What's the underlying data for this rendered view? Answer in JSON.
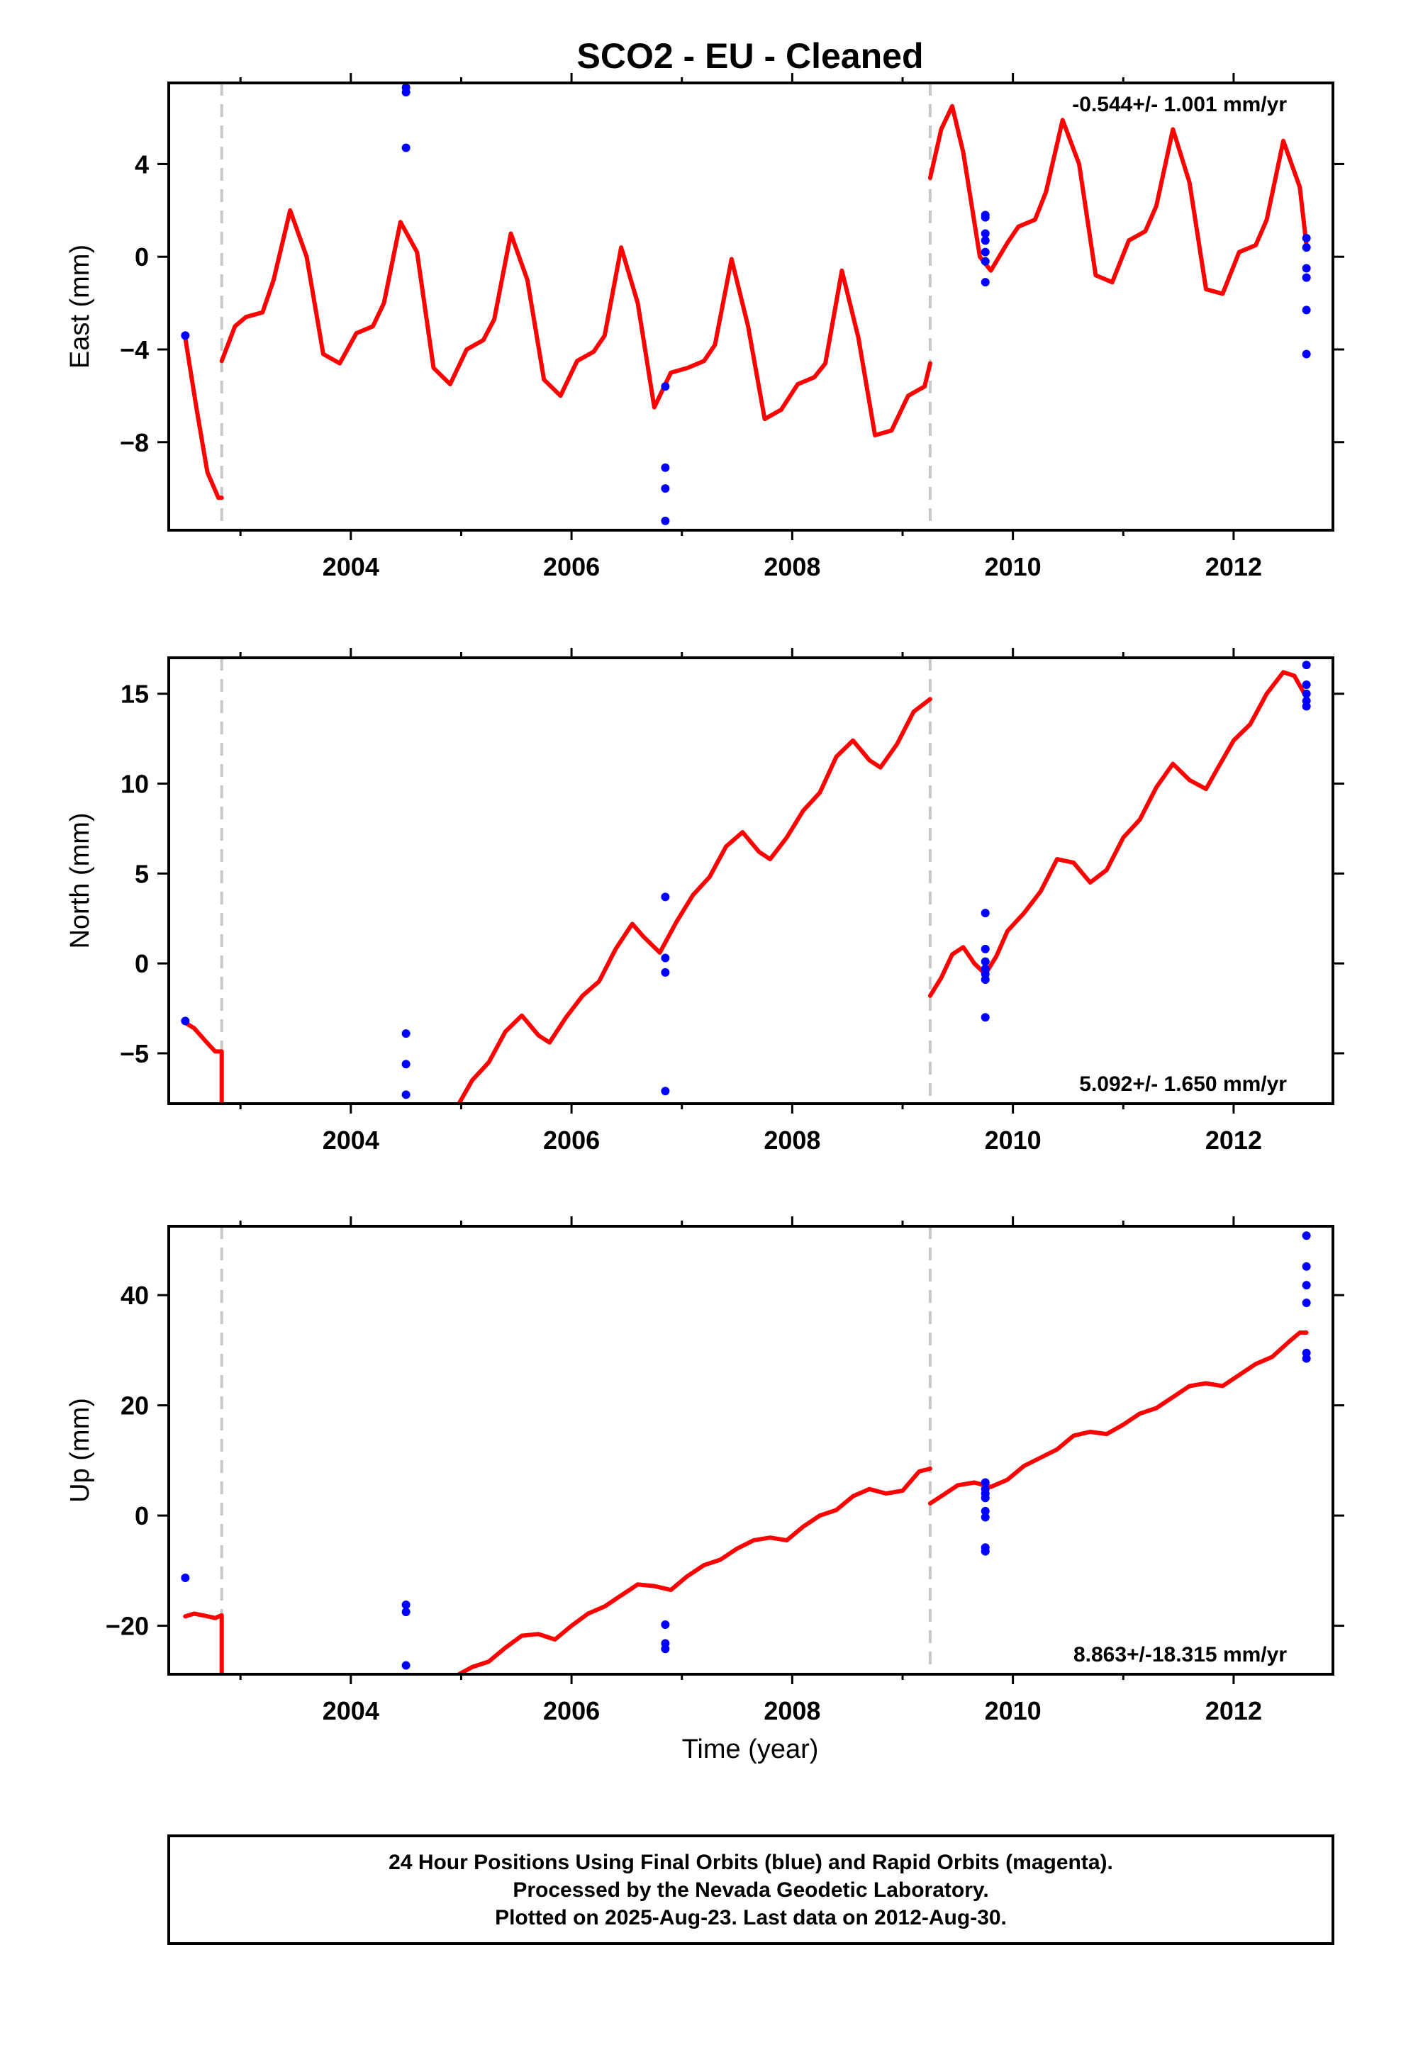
{
  "chart_data": [
    {
      "type": "line",
      "title": "SCO2  - EU - Cleaned",
      "ylabel": "East (mm)",
      "xlabel": "",
      "rate_label": "-0.544+/- 1.001 mm/yr",
      "xlim": [
        2002.35,
        2012.9
      ],
      "ylim": [
        -11.8,
        7.5
      ],
      "yticks": [
        -8,
        -4,
        0,
        4
      ],
      "ytick_labels": [
        "−8",
        "−4",
        "0",
        "4"
      ],
      "xticks": [
        2004,
        2006,
        2008,
        2010,
        2012
      ],
      "xtick_labels": [
        "2004",
        "2006",
        "2008",
        "2010",
        "2012"
      ],
      "breaks": [
        2002.83,
        2009.25
      ],
      "series": [
        {
          "kind": "line",
          "color": "#ff0000",
          "segments": [
            {
              "x": [
                2002.5,
                2002.6,
                2002.7,
                2002.8,
                2002.83
              ],
              "y": [
                -3.5,
                -6.5,
                -9.3,
                -10.4,
                -10.4
              ]
            },
            {
              "x": [
                2002.83,
                2002.95,
                2003.05,
                2003.2,
                2003.3,
                2003.45,
                2003.6,
                2003.75,
                2003.9,
                2004.05,
                2004.2,
                2004.3,
                2004.45,
                2004.6,
                2004.75,
                2004.9,
                2005.05,
                2005.2,
                2005.3,
                2005.45,
                2005.6,
                2005.75,
                2005.9,
                2006.05,
                2006.2,
                2006.3,
                2006.45,
                2006.6,
                2006.75,
                2006.9,
                2007.05,
                2007.2,
                2007.3,
                2007.45,
                2007.6,
                2007.75,
                2007.9,
                2008.05,
                2008.2,
                2008.3,
                2008.45,
                2008.6,
                2008.75,
                2008.9,
                2009.05,
                2009.2,
                2009.25
              ],
              "y": [
                -4.5,
                -3.0,
                -2.6,
                -2.4,
                -1.0,
                2.0,
                0.0,
                -4.2,
                -4.6,
                -3.3,
                -3.0,
                -2.0,
                1.5,
                0.2,
                -4.8,
                -5.5,
                -4.0,
                -3.6,
                -2.7,
                1.0,
                -1.0,
                -5.3,
                -6.0,
                -4.5,
                -4.1,
                -3.4,
                0.4,
                -2.0,
                -6.5,
                -5.0,
                -4.8,
                -4.5,
                -3.8,
                -0.1,
                -3.0,
                -7.0,
                -6.6,
                -5.5,
                -5.2,
                -4.6,
                -0.6,
                -3.5,
                -7.7,
                -7.5,
                -6.0,
                -5.6,
                -4.6
              ]
            },
            {
              "x": [
                2009.25,
                2009.35,
                2009.45,
                2009.55,
                2009.7,
                2009.8,
                2009.95,
                2010.05,
                2010.2,
                2010.3,
                2010.45,
                2010.6,
                2010.75,
                2010.9,
                2011.05,
                2011.2,
                2011.3,
                2011.45,
                2011.6,
                2011.75,
                2011.9,
                2012.05,
                2012.2,
                2012.3,
                2012.45,
                2012.6,
                2012.66
              ],
              "y": [
                3.4,
                5.5,
                6.5,
                4.5,
                0.0,
                -0.6,
                0.6,
                1.3,
                1.6,
                2.8,
                5.9,
                4.0,
                -0.8,
                -1.1,
                0.7,
                1.1,
                2.2,
                5.5,
                3.2,
                -1.4,
                -1.6,
                0.2,
                0.5,
                1.6,
                5.0,
                3.0,
                0.5
              ]
            }
          ]
        },
        {
          "kind": "scatter",
          "color": "#0000ff",
          "x": [
            2002.5,
            2004.5,
            2004.5,
            2004.5,
            2006.85,
            2006.85,
            2006.85,
            2006.85,
            2009.75,
            2009.75,
            2009.75,
            2009.75,
            2009.75,
            2009.75,
            2009.75,
            2012.66,
            2012.66,
            2012.66,
            2012.66,
            2012.66,
            2012.66
          ],
          "y": [
            -3.4,
            7.3,
            7.1,
            4.7,
            -5.6,
            -9.1,
            -10.0,
            -11.4,
            1.8,
            1.7,
            1.0,
            0.7,
            0.2,
            -0.2,
            -1.1,
            0.8,
            0.4,
            -0.5,
            -0.9,
            -2.3,
            -4.2
          ]
        }
      ]
    },
    {
      "type": "line",
      "ylabel": "North (mm)",
      "xlabel": "",
      "rate_label": "5.092+/- 1.650 mm/yr",
      "xlim": [
        2002.35,
        2012.9
      ],
      "ylim": [
        -7.8,
        17.0
      ],
      "yticks": [
        -5,
        0,
        5,
        10,
        15
      ],
      "ytick_labels": [
        "−5",
        "0",
        "5",
        "10",
        "15"
      ],
      "xticks": [
        2004,
        2006,
        2008,
        2010,
        2012
      ],
      "xtick_labels": [
        "2004",
        "2006",
        "2008",
        "2010",
        "2012"
      ],
      "breaks": [
        2002.83,
        2009.25
      ],
      "series": [
        {
          "kind": "line",
          "color": "#ff0000",
          "segments": [
            {
              "x": [
                2002.5,
                2002.58,
                2002.68,
                2002.77,
                2002.83,
                2002.83
              ],
              "y": [
                -3.3,
                -3.6,
                -4.3,
                -4.9,
                -4.9,
                -7.8
              ]
            },
            {
              "x": [
                2004.98,
                2005.1,
                2005.25,
                2005.4,
                2005.55,
                2005.7,
                2005.8,
                2005.95,
                2006.1,
                2006.25,
                2006.4,
                2006.55,
                2006.65,
                2006.8,
                2006.95,
                2007.1,
                2007.25,
                2007.4,
                2007.55,
                2007.7,
                2007.8,
                2007.95,
                2008.1,
                2008.25,
                2008.4,
                2008.55,
                2008.7,
                2008.8,
                2008.95,
                2009.1,
                2009.25
              ],
              "y": [
                -7.8,
                -6.5,
                -5.5,
                -3.8,
                -2.9,
                -4.0,
                -4.4,
                -3.0,
                -1.8,
                -1.0,
                0.8,
                2.2,
                1.5,
                0.6,
                2.3,
                3.8,
                4.8,
                6.5,
                7.3,
                6.2,
                5.8,
                7.0,
                8.5,
                9.5,
                11.5,
                12.4,
                11.3,
                10.9,
                12.2,
                14.0,
                14.7
              ]
            },
            {
              "x": [
                2009.25,
                2009.35,
                2009.45,
                2009.55,
                2009.65,
                2009.75,
                2009.85,
                2009.95,
                2010.1,
                2010.25,
                2010.4,
                2010.55,
                2010.7,
                2010.85,
                2011.0,
                2011.15,
                2011.3,
                2011.45,
                2011.6,
                2011.75,
                2011.85,
                2012.0,
                2012.15,
                2012.3,
                2012.45,
                2012.55,
                2012.66
              ],
              "y": [
                -1.8,
                -0.8,
                0.5,
                0.9,
                0.0,
                -0.6,
                0.4,
                1.8,
                2.8,
                4.0,
                5.8,
                5.6,
                4.5,
                5.2,
                7.0,
                8.0,
                9.8,
                11.1,
                10.2,
                9.7,
                10.8,
                12.4,
                13.3,
                15.0,
                16.2,
                16.0,
                14.8
              ]
            }
          ]
        },
        {
          "kind": "scatter",
          "color": "#0000ff",
          "x": [
            2002.5,
            2004.5,
            2004.5,
            2004.5,
            2006.85,
            2006.85,
            2006.85,
            2006.85,
            2009.75,
            2009.75,
            2009.75,
            2009.75,
            2009.75,
            2009.75,
            2009.75,
            2012.66,
            2012.66,
            2012.66,
            2012.66,
            2012.66
          ],
          "y": [
            -3.2,
            -3.9,
            -5.6,
            -7.3,
            3.7,
            0.3,
            -0.5,
            -7.1,
            2.8,
            0.8,
            0.1,
            -0.3,
            -0.6,
            -0.9,
            -3.0,
            16.6,
            15.5,
            15.0,
            14.6,
            14.3
          ]
        }
      ]
    },
    {
      "type": "line",
      "ylabel": "Up (mm)",
      "xlabel": "Time (year)",
      "rate_label": "8.863+/-18.315 mm/yr",
      "xlim": [
        2002.35,
        2012.9
      ],
      "ylim": [
        -28.8,
        52.5
      ],
      "yticks": [
        -20,
        0,
        20,
        40
      ],
      "ytick_labels": [
        "−20",
        "0",
        "20",
        "40"
      ],
      "xticks": [
        2004,
        2006,
        2008,
        2010,
        2012
      ],
      "xtick_labels": [
        "2004",
        "2006",
        "2008",
        "2010",
        "2012"
      ],
      "breaks": [
        2002.83,
        2009.25
      ],
      "series": [
        {
          "kind": "line",
          "color": "#ff0000",
          "segments": [
            {
              "x": [
                2002.5,
                2002.58,
                2002.68,
                2002.77,
                2002.83,
                2002.83
              ],
              "y": [
                -18.3,
                -17.8,
                -18.2,
                -18.6,
                -18.1,
                -28.8
              ]
            },
            {
              "x": [
                2004.98,
                2005.1,
                2005.25,
                2005.4,
                2005.55,
                2005.7,
                2005.85,
                2006.0,
                2006.15,
                2006.3,
                2006.45,
                2006.6,
                2006.75,
                2006.9,
                2007.05,
                2007.2,
                2007.35,
                2007.5,
                2007.65,
                2007.8,
                2007.95,
                2008.1,
                2008.25,
                2008.4,
                2008.55,
                2008.7,
                2008.85,
                2009.0,
                2009.15,
                2009.25
              ],
              "y": [
                -28.8,
                -27.5,
                -26.5,
                -24.0,
                -21.8,
                -21.5,
                -22.5,
                -20.0,
                -17.8,
                -16.5,
                -14.5,
                -12.5,
                -12.8,
                -13.5,
                -11.0,
                -9.0,
                -8.0,
                -6.0,
                -4.5,
                -4.0,
                -4.5,
                -2.0,
                0.0,
                1.0,
                3.5,
                4.8,
                4.0,
                4.5,
                8.0,
                8.5
              ]
            },
            {
              "x": [
                2009.25,
                2009.35,
                2009.5,
                2009.65,
                2009.8,
                2009.95,
                2010.1,
                2010.25,
                2010.4,
                2010.55,
                2010.7,
                2010.85,
                2011.0,
                2011.15,
                2011.3,
                2011.45,
                2011.6,
                2011.75,
                2011.9,
                2012.05,
                2012.2,
                2012.35,
                2012.5,
                2012.6,
                2012.66
              ],
              "y": [
                2.2,
                3.5,
                5.5,
                6.0,
                5.2,
                6.5,
                9.0,
                10.5,
                12.0,
                14.5,
                15.2,
                14.8,
                16.5,
                18.5,
                19.5,
                21.5,
                23.5,
                24.0,
                23.5,
                25.5,
                27.5,
                28.8,
                31.5,
                33.2,
                33.2
              ]
            }
          ]
        },
        {
          "kind": "scatter",
          "color": "#0000ff",
          "x": [
            2002.5,
            2004.5,
            2004.5,
            2004.5,
            2006.85,
            2006.85,
            2006.85,
            2009.75,
            2009.75,
            2009.75,
            2009.75,
            2009.75,
            2009.75,
            2009.75,
            2009.75,
            2012.66,
            2012.66,
            2012.66,
            2012.66,
            2012.66,
            2012.66
          ],
          "y": [
            -11.3,
            -16.2,
            -17.5,
            -27.2,
            -19.8,
            -23.2,
            -24.2,
            6.0,
            4.8,
            4.0,
            3.2,
            0.8,
            -0.3,
            -5.8,
            -6.5,
            50.8,
            45.2,
            41.8,
            38.6,
            29.5,
            28.5
          ]
        }
      ]
    }
  ],
  "footer": {
    "line1": "24 Hour Positions Using Final Orbits (blue) and Rapid Orbits (magenta).",
    "line2": "Processed by the Nevada Geodetic Laboratory.",
    "line3": "Plotted on 2025-Aug-23. Last data on 2012-Aug-30."
  }
}
